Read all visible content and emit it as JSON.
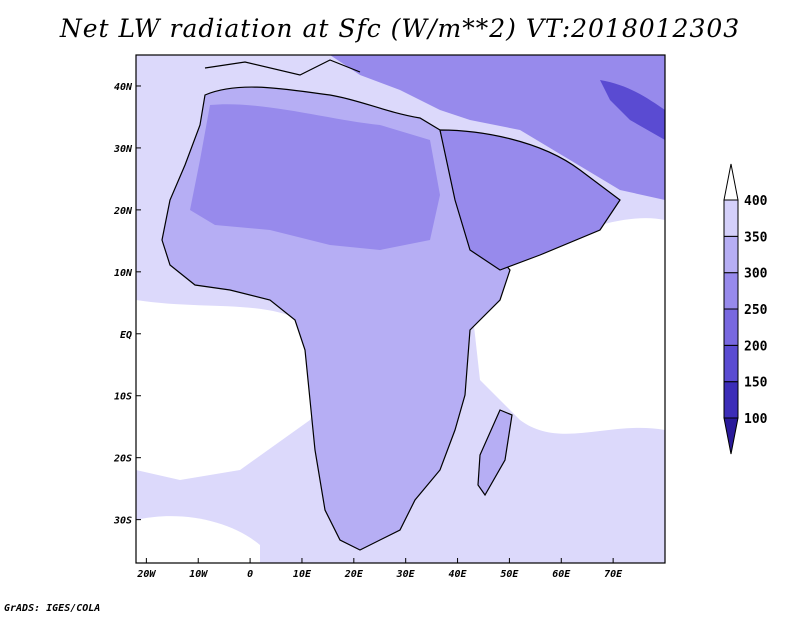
{
  "title": "Net LW radiation at Sfc (W/m**2) VT:2018012303",
  "credit": "GrADS: IGES/COLA",
  "map": {
    "lon_labels": [
      "20W",
      "10W",
      "0",
      "10E",
      "20E",
      "30E",
      "40E",
      "50E",
      "60E",
      "70E"
    ],
    "lon_values": [
      -20,
      -10,
      0,
      10,
      20,
      30,
      40,
      50,
      60,
      70
    ],
    "lat_labels": [
      "40N",
      "30N",
      "20N",
      "10N",
      "EQ",
      "10S",
      "20S",
      "30S"
    ],
    "lat_values": [
      40,
      30,
      20,
      10,
      0,
      -10,
      -20,
      -30
    ],
    "lon_range": [
      -22,
      80
    ],
    "lat_range": [
      -37,
      45
    ]
  },
  "colorbar": {
    "levels": [
      "100",
      "150",
      "200",
      "250",
      "300",
      "350",
      "400"
    ],
    "colors": [
      "#3c2db8",
      "#5a4bd2",
      "#7868e0",
      "#978aec",
      "#b6aef4",
      "#d4d0fa",
      "#ecebfd"
    ],
    "top_color": "#ffffff",
    "bottom_color": "#2a1a9a"
  }
}
